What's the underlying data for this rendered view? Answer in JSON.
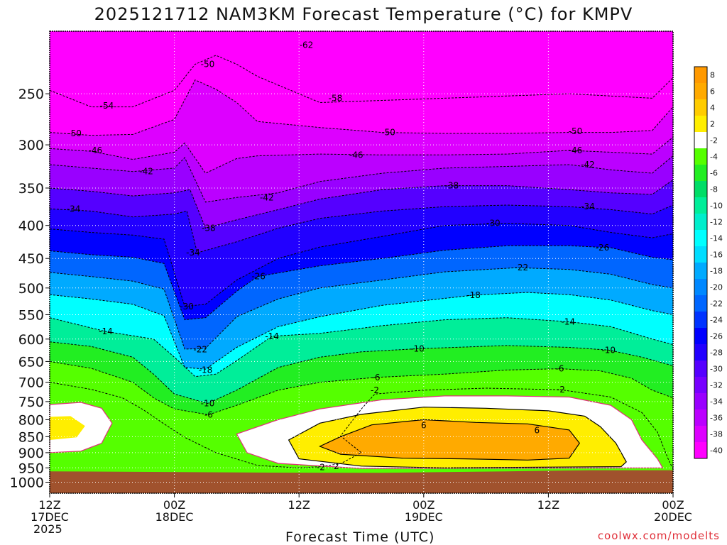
{
  "chart_data": {
    "type": "heatmap",
    "title": "2025121712 NAM3KM Forecast Temperature (°C) for KMPV",
    "xlabel": "Forecast Time (UTC)",
    "ylabel": "",
    "x_ticks": [
      {
        "hours": 0,
        "lines": [
          "12Z",
          "17DEC",
          "2025"
        ]
      },
      {
        "hours": 12,
        "lines": [
          "00Z",
          "18DEC"
        ]
      },
      {
        "hours": 24,
        "lines": [
          "12Z"
        ]
      },
      {
        "hours": 36,
        "lines": [
          "00Z",
          "19DEC"
        ]
      },
      {
        "hours": 48,
        "lines": [
          "12Z"
        ]
      },
      {
        "hours": 60,
        "lines": [
          "00Z",
          "20DEC"
        ]
      }
    ],
    "xlim": [
      0,
      60
    ],
    "y_ticks": [
      250,
      300,
      350,
      400,
      450,
      500,
      550,
      600,
      650,
      700,
      750,
      800,
      850,
      900,
      950,
      1000
    ],
    "ylim": [
      1040,
      200
    ],
    "y_scale": "log",
    "grid": true,
    "colorbar": {
      "labels": [
        "8",
        "6",
        "4",
        "2",
        "-2",
        "-4",
        "-6",
        "-8",
        "-10",
        "-12",
        "-14",
        "-16",
        "-18",
        "-20",
        "-22",
        "-24",
        "-26",
        "-28",
        "-30",
        "-32",
        "-34",
        "-36",
        "-38",
        "-40"
      ],
      "colors": [
        "#ff9900",
        "#ffaa00",
        "#ffcc00",
        "#ffee00",
        "#ffffff",
        "#55ff00",
        "#22ee22",
        "#00dd66",
        "#00ee99",
        "#00eecc",
        "#00ffff",
        "#00ddff",
        "#00aaff",
        "#0088ff",
        "#0066ff",
        "#0033ff",
        "#0000ff",
        "#2200ff",
        "#5500ff",
        "#7700ff",
        "#9900ff",
        "#bb00ff",
        "#dd00ff",
        "#ff00ff"
      ]
    },
    "ground_color": "#a0522d",
    "contour_labels": [
      {
        "text": "-62",
        "t": 24.7,
        "p": 210
      },
      {
        "text": "-50",
        "t": 15.2,
        "p": 225
      },
      {
        "text": "-54",
        "t": 5.5,
        "p": 261
      },
      {
        "text": "-58",
        "t": 27.5,
        "p": 254
      },
      {
        "text": "-50",
        "t": 2.4,
        "p": 288
      },
      {
        "text": "-50",
        "t": 32.6,
        "p": 287
      },
      {
        "text": "-50",
        "t": 50.6,
        "p": 286
      },
      {
        "text": "-46",
        "t": 4.4,
        "p": 306
      },
      {
        "text": "-46",
        "t": 29.5,
        "p": 311
      },
      {
        "text": "-46",
        "t": 50.6,
        "p": 306
      },
      {
        "text": "-42",
        "t": 9.3,
        "p": 330
      },
      {
        "text": "-42",
        "t": 20.9,
        "p": 362
      },
      {
        "text": "-42",
        "t": 51.8,
        "p": 322
      },
      {
        "text": "-38",
        "t": 38.7,
        "p": 347
      },
      {
        "text": "-38",
        "t": 15.3,
        "p": 404
      },
      {
        "text": "-34",
        "t": 2.3,
        "p": 377
      },
      {
        "text": "-34",
        "t": 51.8,
        "p": 374
      },
      {
        "text": "-34",
        "t": 13.8,
        "p": 441
      },
      {
        "text": "-30",
        "t": 42.7,
        "p": 397
      },
      {
        "text": "-26",
        "t": 20.1,
        "p": 480
      },
      {
        "text": "-26",
        "t": 53.2,
        "p": 433
      },
      {
        "text": "-22",
        "t": 45.4,
        "p": 465
      },
      {
        "text": "-30",
        "t": 13.2,
        "p": 534
      },
      {
        "text": "-18",
        "t": 40.8,
        "p": 513
      },
      {
        "text": "-14",
        "t": 5.4,
        "p": 584
      },
      {
        "text": "-14",
        "t": 21.4,
        "p": 594
      },
      {
        "text": "-14",
        "t": 49.9,
        "p": 564
      },
      {
        "text": "-22",
        "t": 14.5,
        "p": 623
      },
      {
        "text": "-10",
        "t": 35.4,
        "p": 621
      },
      {
        "text": "-10",
        "t": 53.8,
        "p": 624
      },
      {
        "text": "-18",
        "t": 15.0,
        "p": 670
      },
      {
        "text": "-6",
        "t": 31.4,
        "p": 688
      },
      {
        "text": "-6",
        "t": 49.1,
        "p": 667
      },
      {
        "text": "-2",
        "t": 31.3,
        "p": 720
      },
      {
        "text": "-2",
        "t": 49.2,
        "p": 719
      },
      {
        "text": "-10",
        "t": 15.2,
        "p": 755
      },
      {
        "text": "-6",
        "t": 15.3,
        "p": 786
      },
      {
        "text": "6",
        "t": 36.0,
        "p": 817
      },
      {
        "text": "6",
        "t": 46.9,
        "p": 831
      },
      {
        "text": "-2",
        "t": 26.1,
        "p": 948
      },
      {
        "text": "2",
        "t": 27.6,
        "p": 945
      }
    ],
    "isotherms": [
      {
        "label": "-54",
        "points": [
          [
            0,
            247
          ],
          [
            4,
            262
          ],
          [
            8,
            262
          ],
          [
            12,
            247
          ],
          [
            14,
            225
          ],
          [
            16,
            218
          ],
          [
            18,
            225
          ],
          [
            20,
            235
          ],
          [
            26,
            258
          ],
          [
            32,
            256
          ],
          [
            38,
            254
          ],
          [
            44,
            252
          ],
          [
            50,
            250
          ],
          [
            54,
            252
          ],
          [
            58,
            254
          ],
          [
            60,
            236
          ]
        ]
      },
      {
        "label": "-50",
        "points": [
          [
            0,
            287
          ],
          [
            4,
            290
          ],
          [
            8,
            289
          ],
          [
            12,
            274
          ],
          [
            14,
            238
          ],
          [
            16,
            246
          ],
          [
            18,
            258
          ],
          [
            20,
            276
          ],
          [
            26,
            282
          ],
          [
            32,
            287
          ],
          [
            38,
            288
          ],
          [
            44,
            288
          ],
          [
            50,
            287
          ],
          [
            54,
            287
          ],
          [
            58,
            285
          ],
          [
            60,
            262
          ]
        ]
      },
      {
        "label": "-46",
        "points": [
          [
            0,
            304
          ],
          [
            4,
            307
          ],
          [
            8,
            316
          ],
          [
            12,
            308
          ],
          [
            13,
            298
          ],
          [
            15,
            332
          ],
          [
            18,
            315
          ],
          [
            20,
            312
          ],
          [
            26,
            310
          ],
          [
            32,
            311
          ],
          [
            38,
            311
          ],
          [
            44,
            310
          ],
          [
            50,
            306
          ],
          [
            54,
            308
          ],
          [
            58,
            310
          ],
          [
            60,
            292
          ]
        ]
      },
      {
        "label": "-42",
        "points": [
          [
            0,
            322
          ],
          [
            4,
            326
          ],
          [
            8,
            330
          ],
          [
            12,
            326
          ],
          [
            13,
            314
          ],
          [
            15,
            368
          ],
          [
            18,
            362
          ],
          [
            22,
            356
          ],
          [
            26,
            342
          ],
          [
            32,
            332
          ],
          [
            38,
            326
          ],
          [
            44,
            324
          ],
          [
            50,
            322
          ],
          [
            54,
            328
          ],
          [
            58,
            332
          ],
          [
            60,
            312
          ]
        ]
      },
      {
        "label": "-38",
        "points": [
          [
            0,
            350
          ],
          [
            4,
            354
          ],
          [
            8,
            360
          ],
          [
            12,
            356
          ],
          [
            13.5,
            352
          ],
          [
            15,
            404
          ],
          [
            18,
            392
          ],
          [
            22,
            378
          ],
          [
            26,
            364
          ],
          [
            32,
            352
          ],
          [
            38,
            347
          ],
          [
            44,
            347
          ],
          [
            50,
            352
          ],
          [
            54,
            356
          ],
          [
            58,
            358
          ],
          [
            60,
            340
          ]
        ]
      },
      {
        "label": "-34",
        "points": [
          [
            0,
            377
          ],
          [
            4,
            380
          ],
          [
            8,
            388
          ],
          [
            12,
            384
          ],
          [
            13.2,
            380
          ],
          [
            14.2,
            441
          ],
          [
            18,
            424
          ],
          [
            22,
            404
          ],
          [
            26,
            390
          ],
          [
            32,
            380
          ],
          [
            38,
            374
          ],
          [
            44,
            372
          ],
          [
            50,
            374
          ],
          [
            54,
            378
          ],
          [
            58,
            384
          ],
          [
            60,
            372
          ]
        ]
      },
      {
        "label": "-30",
        "points": [
          [
            0,
            405
          ],
          [
            4,
            410
          ],
          [
            8,
            414
          ],
          [
            11,
            420
          ],
          [
            13,
            534
          ],
          [
            15,
            530
          ],
          [
            18,
            486
          ],
          [
            22,
            450
          ],
          [
            26,
            432
          ],
          [
            32,
            416
          ],
          [
            38,
            400
          ],
          [
            44,
            397
          ],
          [
            50,
            400
          ],
          [
            54,
            410
          ],
          [
            58,
            418
          ],
          [
            60,
            412
          ]
        ]
      },
      {
        "label": "-26",
        "points": [
          [
            0,
            438
          ],
          [
            4,
            444
          ],
          [
            8,
            448
          ],
          [
            11,
            458
          ],
          [
            13,
            560
          ],
          [
            15,
            556
          ],
          [
            18,
            506
          ],
          [
            20,
            480
          ],
          [
            26,
            462
          ],
          [
            32,
            450
          ],
          [
            38,
            437
          ],
          [
            44,
            430
          ],
          [
            50,
            430
          ],
          [
            54,
            433
          ],
          [
            58,
            448
          ],
          [
            60,
            452
          ]
        ]
      },
      {
        "label": "-22",
        "points": [
          [
            0,
            473
          ],
          [
            4,
            480
          ],
          [
            8,
            488
          ],
          [
            11,
            502
          ],
          [
            13,
            622
          ],
          [
            15,
            620
          ],
          [
            18,
            554
          ],
          [
            22,
            520
          ],
          [
            26,
            500
          ],
          [
            32,
            486
          ],
          [
            38,
            472
          ],
          [
            45,
            465
          ],
          [
            50,
            468
          ],
          [
            54,
            476
          ],
          [
            58,
            494
          ],
          [
            60,
            500
          ]
        ]
      },
      {
        "label": "-18",
        "points": [
          [
            0,
            512
          ],
          [
            4,
            520
          ],
          [
            8,
            530
          ],
          [
            11,
            552
          ],
          [
            13,
            664
          ],
          [
            15,
            668
          ],
          [
            18,
            618
          ],
          [
            22,
            574
          ],
          [
            26,
            554
          ],
          [
            32,
            532
          ],
          [
            40.8,
            513
          ],
          [
            46,
            508
          ],
          [
            50,
            512
          ],
          [
            54,
            522
          ],
          [
            58,
            542
          ],
          [
            60,
            550
          ]
        ]
      },
      {
        "label": "-14",
        "points": [
          [
            0,
            556
          ],
          [
            5.4,
            584
          ],
          [
            10,
            600
          ],
          [
            12,
            640
          ],
          [
            14,
            686
          ],
          [
            16,
            680
          ],
          [
            18,
            648
          ],
          [
            21.4,
            594
          ],
          [
            26,
            588
          ],
          [
            32,
            572
          ],
          [
            38,
            560
          ],
          [
            44,
            556
          ],
          [
            50,
            564
          ],
          [
            54,
            574
          ],
          [
            58,
            600
          ],
          [
            60,
            612
          ]
        ]
      },
      {
        "label": "-10",
        "points": [
          [
            0,
            606
          ],
          [
            4,
            616
          ],
          [
            8,
            640
          ],
          [
            10,
            680
          ],
          [
            12,
            730
          ],
          [
            15.2,
            755
          ],
          [
            18,
            720
          ],
          [
            22,
            664
          ],
          [
            26,
            640
          ],
          [
            30,
            628
          ],
          [
            35.4,
            621
          ],
          [
            44,
            614
          ],
          [
            50,
            618
          ],
          [
            53.8,
            624
          ],
          [
            57,
            640
          ],
          [
            60,
            660
          ]
        ]
      },
      {
        "label": "-6",
        "points": [
          [
            0,
            650
          ],
          [
            4,
            666
          ],
          [
            8,
            700
          ],
          [
            10,
            740
          ],
          [
            12,
            770
          ],
          [
            15.3,
            786
          ],
          [
            18,
            760
          ],
          [
            22,
            720
          ],
          [
            26,
            700
          ],
          [
            31.4,
            688
          ],
          [
            38,
            680
          ],
          [
            44,
            670
          ],
          [
            49.1,
            667
          ],
          [
            53,
            672
          ],
          [
            56,
            690
          ],
          [
            58,
            720
          ],
          [
            60,
            740
          ]
        ]
      },
      {
        "label": "-2",
        "points": [
          [
            0,
            700
          ],
          [
            4,
            718
          ],
          [
            7,
            740
          ],
          [
            9,
            772
          ],
          [
            11,
            812
          ],
          [
            13,
            852
          ],
          [
            16,
            900
          ],
          [
            20,
            942
          ],
          [
            24,
            950
          ],
          [
            26,
            946
          ],
          [
            28,
            936
          ],
          [
            30,
            900
          ],
          [
            28,
            848
          ],
          [
            30,
            770
          ],
          [
            31.3,
            730
          ],
          [
            36,
            720
          ],
          [
            42,
            715
          ],
          [
            49.2,
            719
          ],
          [
            54,
            738
          ],
          [
            57,
            780
          ],
          [
            58.5,
            836
          ],
          [
            59.5,
            918
          ],
          [
            60,
            955
          ]
        ]
      }
    ]
  },
  "watermark": "coolwx.com/modelts"
}
